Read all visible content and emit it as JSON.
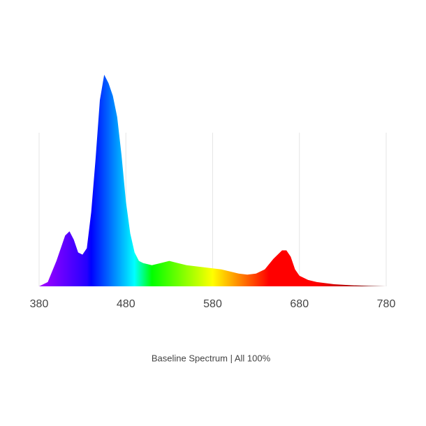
{
  "chart_data": {
    "type": "area",
    "caption": "Baseline Spectrum  | All 100%",
    "x": [
      380,
      390,
      400,
      410,
      415,
      420,
      425,
      430,
      435,
      440,
      445,
      450,
      455,
      460,
      465,
      470,
      475,
      480,
      485,
      490,
      495,
      500,
      510,
      520,
      530,
      540,
      550,
      560,
      570,
      580,
      590,
      600,
      610,
      620,
      630,
      640,
      650,
      660,
      665,
      670,
      675,
      680,
      690,
      700,
      720,
      740,
      760,
      780
    ],
    "values": [
      0,
      2,
      12,
      24,
      26,
      22,
      16,
      15,
      18,
      35,
      60,
      88,
      100,
      96,
      90,
      80,
      62,
      40,
      25,
      16,
      12,
      11,
      10,
      11,
      12,
      11,
      10,
      9.5,
      9,
      8.5,
      8,
      7,
      6,
      5.5,
      6,
      8,
      13,
      17,
      17,
      14,
      8,
      5,
      3,
      2,
      1,
      0.5,
      0.2,
      0
    ],
    "xlim": [
      380,
      780
    ],
    "xticks": [
      380,
      480,
      580,
      680,
      780
    ],
    "ylim": [
      0,
      100
    ],
    "grid": true,
    "fill": "wavelength"
  }
}
